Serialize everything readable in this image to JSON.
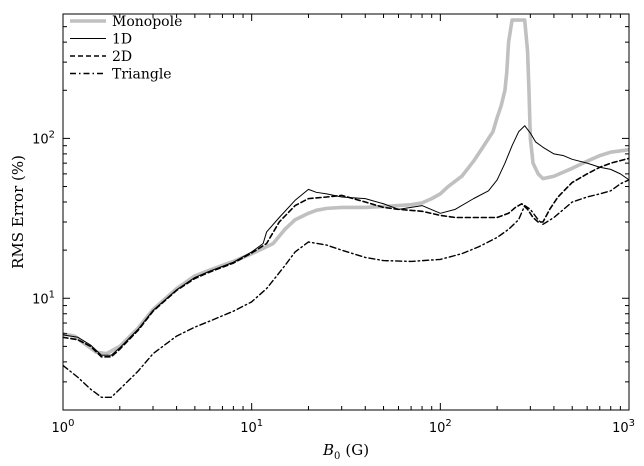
{
  "chart_data": {
    "type": "line",
    "xscale": "log",
    "yscale": "log",
    "xlim": [
      1,
      1000
    ],
    "ylim": [
      2,
      600
    ],
    "xlabel": "B0 (G)",
    "xlabel_main": "B",
    "xlabel_sub": "0",
    "xlabel_unit": "(G)",
    "ylabel": "RMS Error  (%)",
    "legend_position": "top-left",
    "x_ticks": [
      {
        "value": 1,
        "base": "10",
        "exp": "0"
      },
      {
        "value": 10,
        "base": "10",
        "exp": "1"
      },
      {
        "value": 100,
        "base": "10",
        "exp": "2"
      },
      {
        "value": 1000,
        "base": "10",
        "exp": "3"
      }
    ],
    "y_ticks": [
      {
        "value": 10,
        "base": "10",
        "exp": "1"
      },
      {
        "value": 100,
        "base": "10",
        "exp": "2"
      }
    ],
    "series": [
      {
        "name": "Monopole",
        "color": "#c0c0c0",
        "style": "solid-thick",
        "x": [
          1,
          1.15,
          1.3,
          1.5,
          1.7,
          2,
          2.5,
          3,
          4,
          5,
          6,
          8,
          10,
          11.5,
          13,
          15,
          17,
          20,
          22,
          25,
          30,
          40,
          50,
          60,
          70,
          80,
          90,
          100,
          110,
          130,
          150,
          170,
          190,
          200,
          210,
          220,
          225,
          230,
          240,
          250,
          260,
          270,
          280,
          290,
          295,
          300,
          310,
          330,
          350,
          400,
          500,
          600,
          700,
          800,
          1000
        ],
        "y": [
          6.0,
          5.8,
          5.2,
          4.6,
          4.5,
          5.0,
          6.5,
          8.5,
          11.5,
          13.8,
          15.0,
          17.0,
          19.0,
          20.5,
          22.0,
          27.0,
          31.0,
          34.0,
          35.5,
          36.5,
          37.0,
          37.0,
          37.5,
          38.0,
          38.5,
          39.5,
          42.0,
          45.0,
          50.0,
          58.0,
          72.0,
          90.0,
          110.0,
          135.0,
          160.0,
          200.0,
          260.0,
          400.0,
          550.0,
          550.0,
          550.0,
          550.0,
          550.0,
          350.0,
          200.0,
          100.0,
          70.0,
          60.0,
          56.0,
          58.0,
          65.0,
          72.0,
          78.0,
          82.0,
          85.0
        ]
      },
      {
        "name": "1D",
        "color": "#000000",
        "style": "solid-thin",
        "x": [
          1,
          1.2,
          1.4,
          1.6,
          1.8,
          2,
          2.5,
          3,
          4,
          5,
          6,
          8,
          10,
          11.5,
          12,
          14,
          17,
          20,
          22,
          25,
          30,
          40,
          50,
          60,
          70,
          80,
          100,
          120,
          150,
          180,
          200,
          220,
          240,
          260,
          280,
          300,
          320,
          350,
          400,
          450,
          500,
          600,
          700,
          800,
          900,
          1000
        ],
        "y": [
          5.9,
          5.7,
          5.1,
          4.4,
          4.4,
          4.9,
          6.4,
          8.4,
          11.3,
          13.5,
          14.8,
          16.8,
          19.5,
          22.0,
          26.0,
          32.0,
          41.0,
          48.0,
          46.0,
          45.0,
          43.0,
          42.0,
          39.0,
          36.0,
          37.0,
          38.0,
          34.0,
          36.0,
          42.0,
          47.0,
          55.0,
          70.0,
          90.0,
          110.0,
          120.0,
          108.0,
          95.0,
          88.0,
          80.0,
          78.0,
          74.0,
          70.0,
          66.0,
          64.0,
          60.0,
          55.0
        ]
      },
      {
        "name": "2D",
        "color": "#000000",
        "style": "dashed",
        "x": [
          1,
          1.2,
          1.4,
          1.6,
          1.8,
          2,
          2.5,
          3,
          4,
          5,
          6,
          8,
          10,
          12,
          14,
          17,
          20,
          25,
          30,
          40,
          50,
          60,
          80,
          100,
          120,
          150,
          200,
          230,
          250,
          270,
          290,
          310,
          330,
          350,
          380,
          420,
          500,
          600,
          700,
          800,
          1000
        ],
        "y": [
          5.7,
          5.5,
          5.0,
          4.3,
          4.3,
          4.8,
          6.3,
          8.3,
          11.2,
          13.3,
          14.6,
          16.6,
          19.2,
          22.0,
          30.0,
          38.0,
          42.0,
          43.0,
          44.0,
          40.0,
          37.0,
          36.0,
          35.0,
          33.0,
          32.0,
          32.0,
          32.0,
          34.0,
          37.0,
          39.0,
          36.0,
          32.0,
          30.0,
          30.0,
          36.0,
          43.0,
          53.0,
          60.0,
          66.0,
          70.0,
          75.0
        ]
      },
      {
        "name": "Triangle",
        "color": "#000000",
        "style": "dashdot",
        "x": [
          1,
          1.2,
          1.4,
          1.6,
          1.8,
          2,
          2.5,
          3,
          4,
          5,
          6,
          8,
          10,
          12,
          15,
          17,
          20,
          25,
          30,
          40,
          50,
          70,
          100,
          130,
          160,
          200,
          230,
          260,
          280,
          300,
          330,
          350,
          400,
          450,
          500,
          600,
          700,
          800,
          900,
          1000
        ],
        "y": [
          3.8,
          3.2,
          2.7,
          2.4,
          2.4,
          2.7,
          3.5,
          4.5,
          5.8,
          6.6,
          7.2,
          8.3,
          9.5,
          11.5,
          16.0,
          19.5,
          22.5,
          21.5,
          20.0,
          18.0,
          17.2,
          17.0,
          17.5,
          19.0,
          21.0,
          24.0,
          27.0,
          31.0,
          38.0,
          36.0,
          31.0,
          29.0,
          32.0,
          36.0,
          40.0,
          43.0,
          45.0,
          47.0,
          52.0,
          55.0
        ]
      }
    ]
  }
}
